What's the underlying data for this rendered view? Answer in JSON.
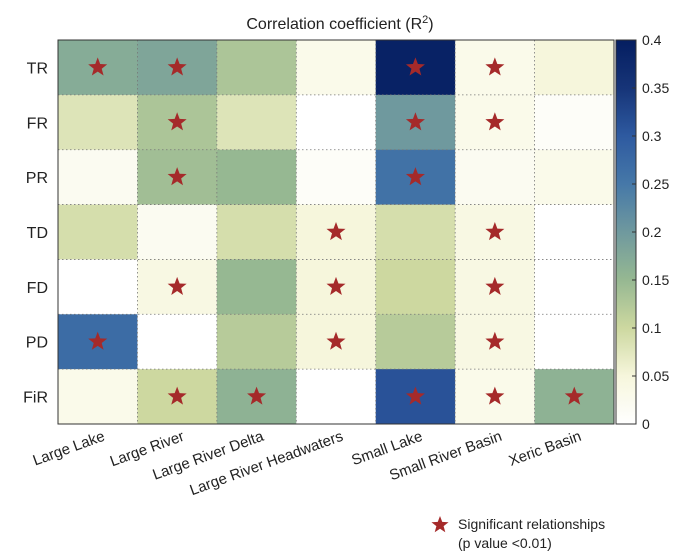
{
  "chart_data": {
    "type": "heatmap",
    "title": "Correlation coefficient (R",
    "title_superscript": "2",
    "title_suffix": ")",
    "rows": [
      "TR",
      "FR",
      "PR",
      "TD",
      "FD",
      "PD",
      "FiR"
    ],
    "columns": [
      "Large Lake",
      "Large River",
      "Large River Delta",
      "Large River Headwaters",
      "Small Lake",
      "Small River Basin",
      "Xeric Basin"
    ],
    "values": [
      [
        0.17,
        0.18,
        0.13,
        0.03,
        0.39,
        0.03,
        0.05
      ],
      [
        0.08,
        0.13,
        0.08,
        0.0,
        0.2,
        0.03,
        0.01
      ],
      [
        0.02,
        0.14,
        0.15,
        0.01,
        0.26,
        0.02,
        0.03
      ],
      [
        0.09,
        0.02,
        0.09,
        0.05,
        0.09,
        0.04,
        0.0
      ],
      [
        0.0,
        0.04,
        0.15,
        0.05,
        0.1,
        0.04,
        0.0
      ],
      [
        0.27,
        0.0,
        0.12,
        0.05,
        0.12,
        0.04,
        0.0
      ],
      [
        0.03,
        0.1,
        0.16,
        0.0,
        0.31,
        0.03,
        0.16
      ]
    ],
    "significant": [
      [
        true,
        true,
        false,
        false,
        true,
        true,
        false
      ],
      [
        false,
        true,
        false,
        false,
        true,
        true,
        false
      ],
      [
        false,
        true,
        false,
        false,
        true,
        false,
        false
      ],
      [
        false,
        false,
        false,
        true,
        false,
        true,
        false
      ],
      [
        false,
        true,
        false,
        true,
        false,
        true,
        false
      ],
      [
        true,
        false,
        false,
        true,
        false,
        true,
        false
      ],
      [
        false,
        true,
        true,
        false,
        true,
        true,
        true
      ]
    ],
    "colorbar": {
      "min": 0,
      "max": 0.4,
      "ticks": [
        "0",
        "0.05",
        "0.1",
        "0.15",
        "0.2",
        "0.25",
        "0.3",
        "0.35",
        "0.4"
      ],
      "tick_values": [
        0,
        0.05,
        0.1,
        0.15,
        0.2,
        0.25,
        0.3,
        0.35,
        0.4
      ]
    },
    "legend": {
      "line1": "Significant relationships",
      "line2": "(p value <0.01)",
      "marker": "star",
      "marker_color": "#a52a2a"
    },
    "grid": true
  }
}
